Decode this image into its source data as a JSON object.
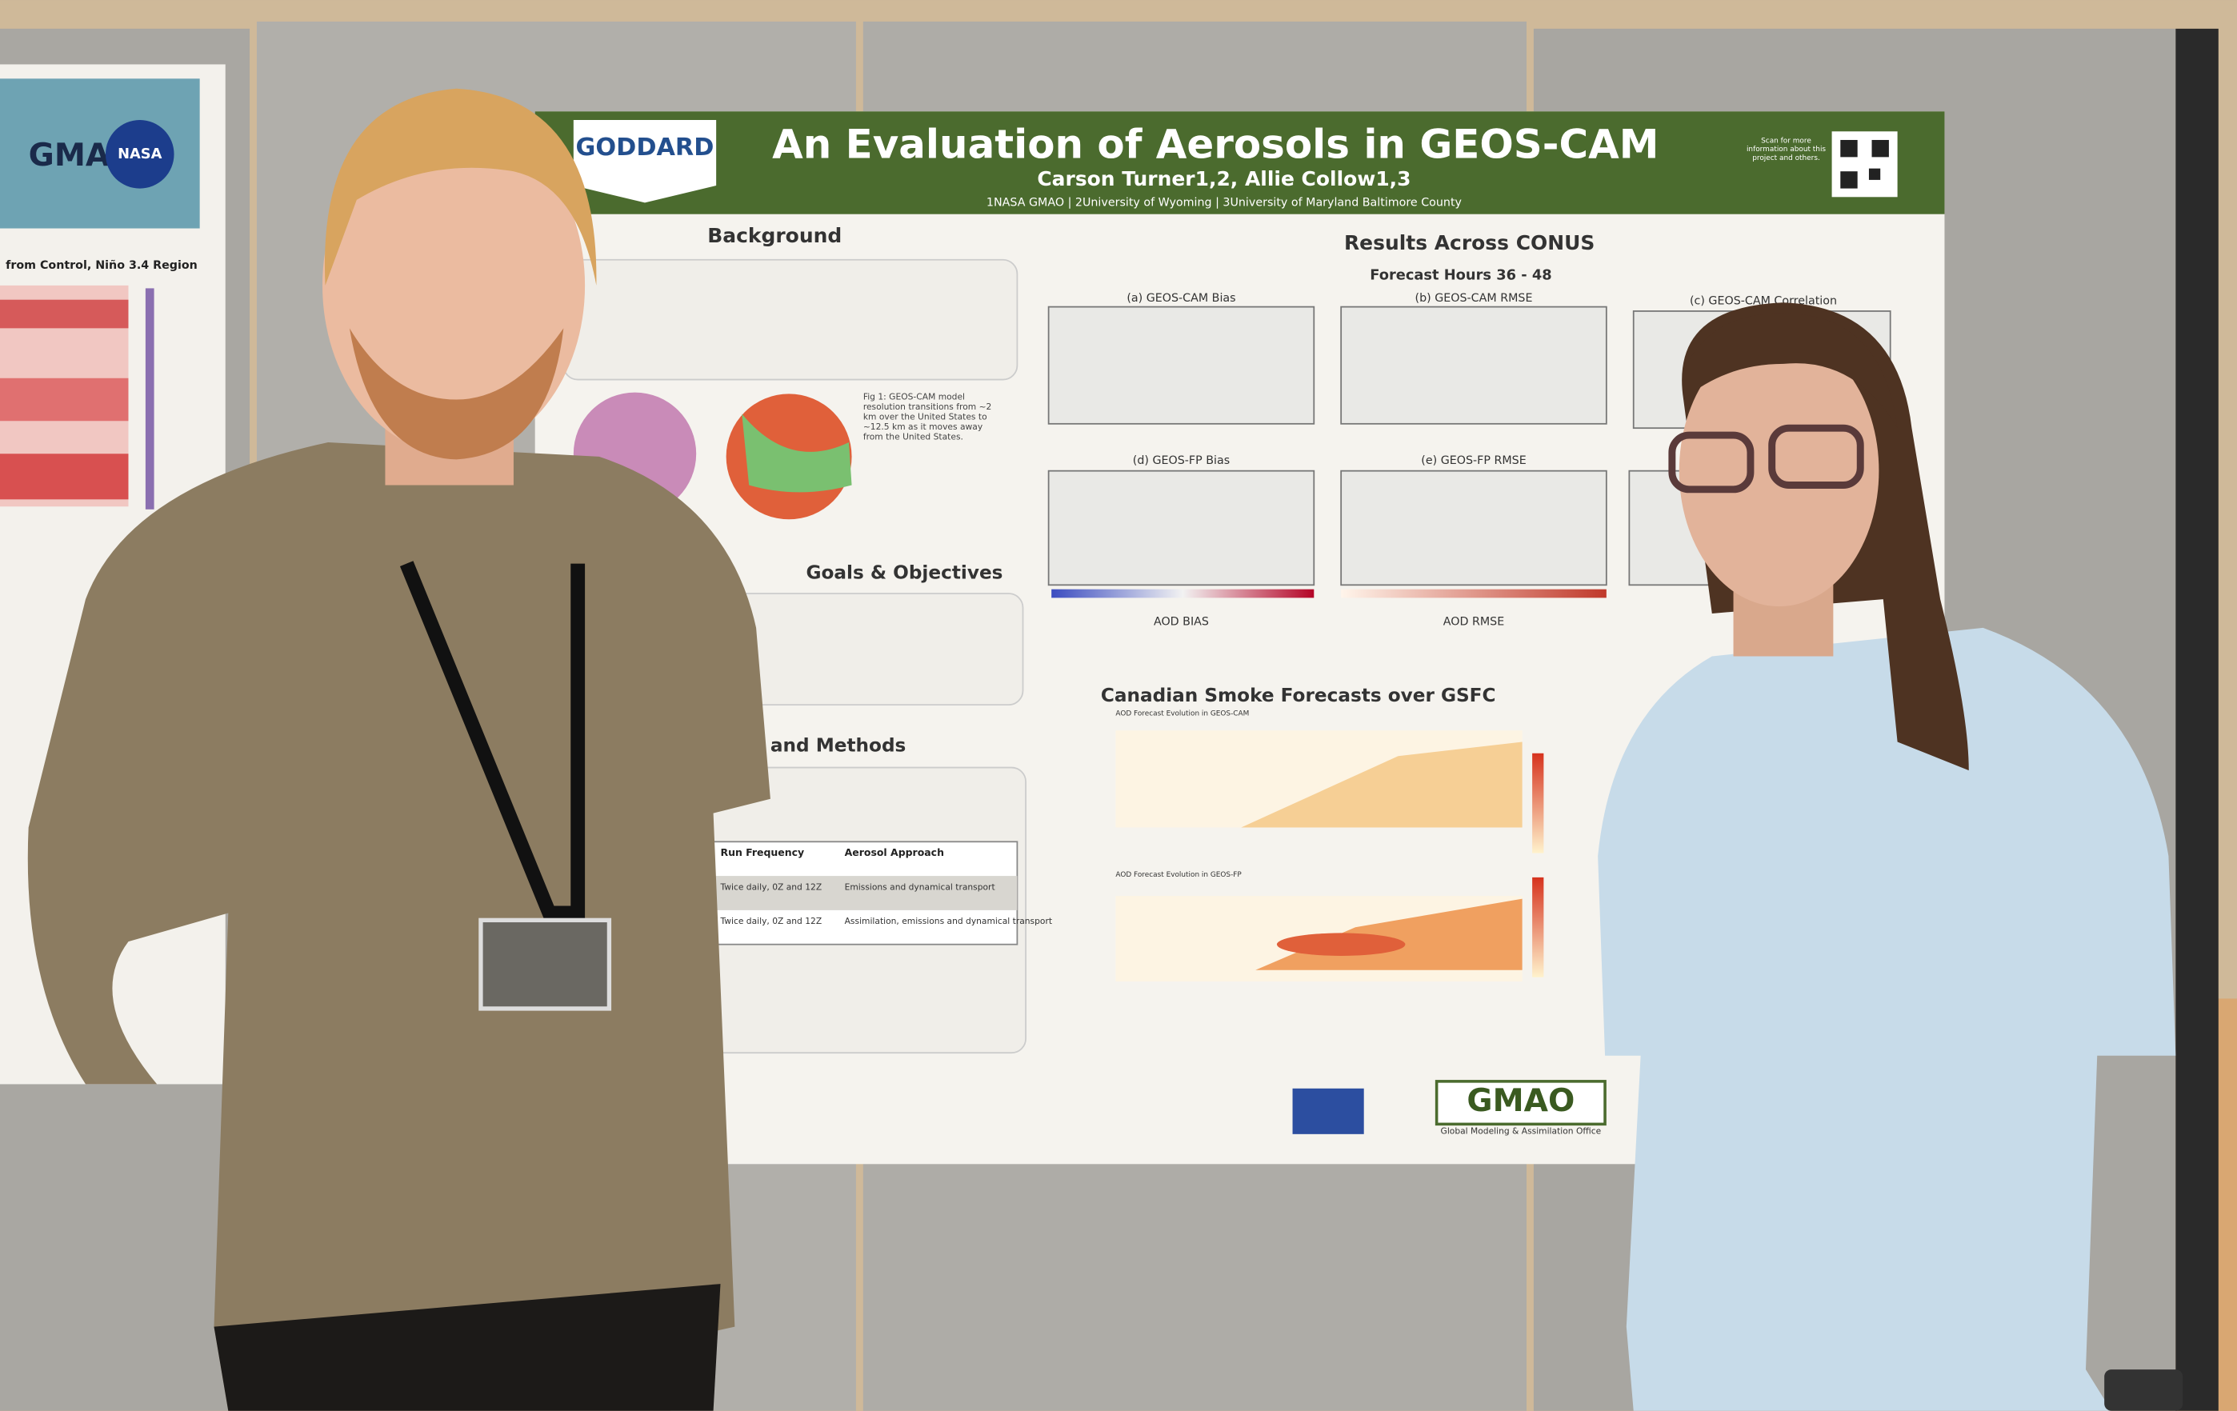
{
  "poster": {
    "logo": "GODDARD",
    "title": "An Evaluation of Aerosols in GEOS-CAM",
    "authors": "Carson Turner1,2, Allie Collow1,3",
    "affiliations": "1NASA GMAO | 2University of Wyoming | 3University of Maryland Baltimore County",
    "qr_note": "Scan for more information about this project and others.",
    "background_heading": "Background",
    "fig1_caption": "Fig 1: GEOS-CAM model resolution transitions from ~2 km over the United States to ~12.5 km as it moves away from the United States.",
    "goals_heading": "Goals & Objectives",
    "methods_heading": "and Methods",
    "table_headers": [
      "Run Frequency",
      "Aerosol Approach"
    ],
    "table_rows": [
      [
        "Twice daily, 0Z and 12Z",
        "Emissions and dynamical transport"
      ],
      [
        "Twice daily, 0Z and 12Z",
        "Assimilation, emissions and dynamical transport"
      ]
    ],
    "results_heading": "Results Across CONUS",
    "results_subheading": "Forecast Hours 36 - 48",
    "panels": [
      "(a) GEOS-CAM Bias",
      "(b) GEOS-CAM RMSE",
      "(c) GEOS-CAM Correlation",
      "(d) GEOS-FP Bias",
      "(e) GEOS-FP RMSE"
    ],
    "colorbar_labels": [
      "AOD BIAS",
      "AOD RMSE"
    ],
    "smoke_heading": "Canadian Smoke Forecasts over GSFC",
    "heatmap_titles": [
      "AOD Forecast Evolution in GEOS-CAM",
      "AOD Forecast Evolution in GEOS-FP"
    ],
    "footer_logo": "GMAO",
    "footer_text": "Global Modeling & Assimilation Office"
  },
  "left_poster": {
    "logo_left": "GMAO",
    "logo_right": "NASA",
    "chart_title": "from Control, Niño 3.4 Region"
  }
}
